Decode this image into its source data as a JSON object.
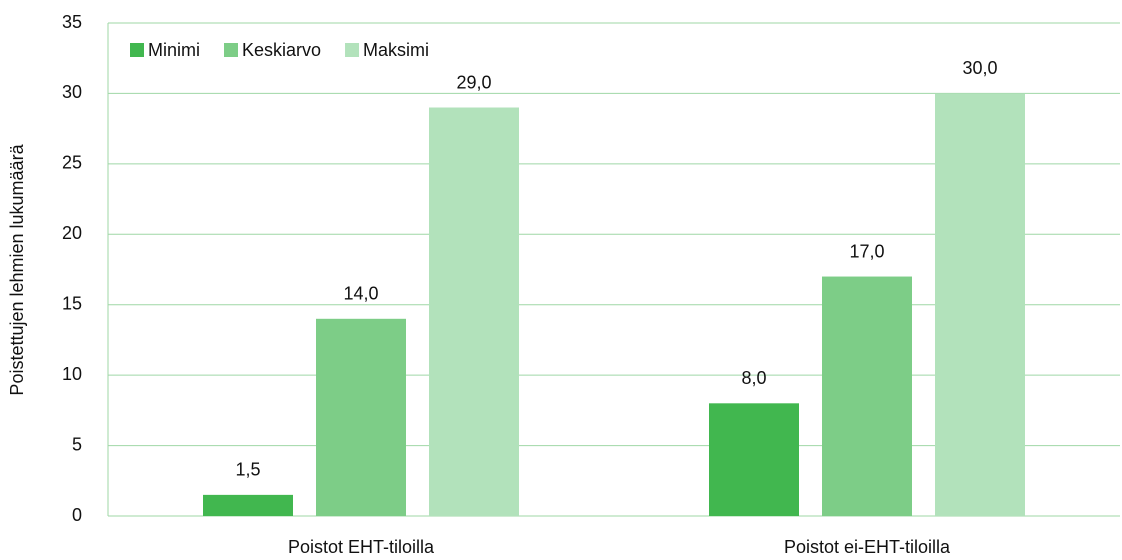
{
  "chart_data": {
    "type": "bar",
    "y_label": "Poistettujen lehmien lukumäärä",
    "categories": [
      "Poistot EHT-tiloilla",
      "Poistot ei-EHT-tiloilla"
    ],
    "series": [
      {
        "name": "Minimi",
        "color": "#41b74f",
        "values": [
          1.5,
          8.0
        ],
        "value_labels": [
          "1,5",
          "8,0"
        ]
      },
      {
        "name": "Keskiarvo",
        "color": "#7dcd87",
        "values": [
          14.0,
          17.0
        ],
        "value_labels": [
          "14,0",
          "17,0"
        ]
      },
      {
        "name": "Maksimi",
        "color": "#b2e2bb",
        "values": [
          29.0,
          30.0
        ],
        "value_labels": [
          "29,0",
          "30,0"
        ]
      }
    ],
    "ylim": [
      0,
      35
    ],
    "yticks": [
      0,
      5,
      10,
      15,
      20,
      25,
      30,
      35
    ],
    "grid": true,
    "legend": "top-left"
  }
}
